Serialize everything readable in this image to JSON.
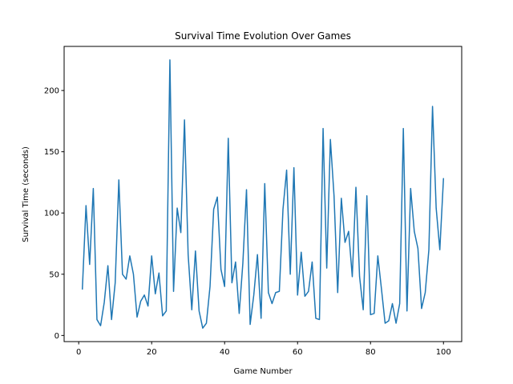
{
  "chart_data": {
    "type": "line",
    "title": "Survival Time Evolution Over Games",
    "xlabel": "Game Number",
    "ylabel": "Survival Time (seconds)",
    "xlim": [
      -4,
      105
    ],
    "ylim": [
      -5,
      236
    ],
    "xticks": [
      0,
      20,
      40,
      60,
      80,
      100
    ],
    "yticks": [
      0,
      50,
      100,
      150,
      200
    ],
    "grid": false,
    "legend": "none",
    "series": [
      {
        "color": "#1f77b4",
        "x": [
          1,
          2,
          3,
          4,
          5,
          6,
          7,
          8,
          9,
          10,
          11,
          12,
          13,
          14,
          15,
          16,
          17,
          18,
          19,
          20,
          21,
          22,
          23,
          24,
          25,
          26,
          27,
          28,
          29,
          30,
          31,
          32,
          33,
          34,
          35,
          36,
          37,
          38,
          39,
          40,
          41,
          42,
          43,
          44,
          45,
          46,
          47,
          48,
          49,
          50,
          51,
          52,
          53,
          54,
          55,
          56,
          57,
          58,
          59,
          60,
          61,
          62,
          63,
          64,
          65,
          66,
          67,
          68,
          69,
          70,
          71,
          72,
          73,
          74,
          75,
          76,
          77,
          78,
          79,
          80,
          81,
          82,
          83,
          84,
          85,
          86,
          87,
          88,
          89,
          90,
          91,
          92,
          93,
          94,
          95,
          96,
          97,
          98,
          99,
          100
        ],
        "values": [
          38,
          106,
          58,
          120,
          13,
          8,
          27,
          57,
          13,
          43,
          127,
          50,
          46,
          65,
          50,
          15,
          28,
          33,
          24,
          65,
          34,
          51,
          16,
          20,
          225,
          36,
          104,
          84,
          176,
          66,
          21,
          69,
          20,
          6,
          10,
          40,
          103,
          113,
          54,
          40,
          161,
          43,
          60,
          18,
          59,
          119,
          9,
          33,
          66,
          14,
          124,
          35,
          26,
          35,
          36,
          103,
          135,
          50,
          137,
          33,
          68,
          32,
          36,
          60,
          14,
          13,
          169,
          55,
          160,
          114,
          35,
          112,
          76,
          85,
          48,
          121,
          48,
          21,
          114,
          17,
          18,
          65,
          38,
          10,
          12,
          26,
          10,
          26,
          169,
          20,
          120,
          85,
          71,
          22,
          35,
          70,
          187,
          104,
          70,
          128
        ]
      }
    ]
  }
}
